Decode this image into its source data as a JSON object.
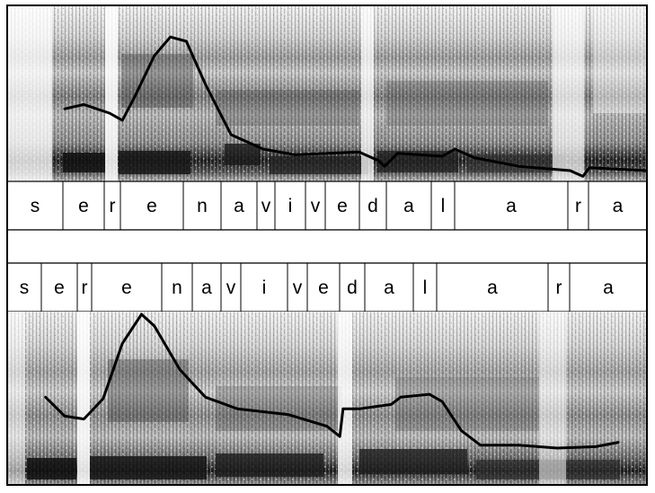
{
  "figure": {
    "top_panel": {
      "segments": [
        "s",
        "e",
        "r",
        "e",
        "n",
        "a",
        "v",
        "i",
        "v",
        "e",
        "d",
        "a",
        "l",
        "a",
        "r",
        "a"
      ],
      "pitch_points": [
        [
          0.09,
          0.52
        ],
        [
          0.12,
          0.49
        ],
        [
          0.16,
          0.55
        ],
        [
          0.18,
          0.6
        ],
        [
          0.2,
          0.43
        ],
        [
          0.23,
          0.15
        ],
        [
          0.255,
          0.02
        ],
        [
          0.28,
          0.05
        ],
        [
          0.31,
          0.35
        ],
        [
          0.35,
          0.7
        ],
        [
          0.4,
          0.8
        ],
        [
          0.45,
          0.84
        ],
        [
          0.55,
          0.82
        ],
        [
          0.58,
          0.88
        ],
        [
          0.59,
          0.92
        ],
        [
          0.61,
          0.83
        ],
        [
          0.68,
          0.85
        ],
        [
          0.7,
          0.8
        ],
        [
          0.73,
          0.86
        ],
        [
          0.8,
          0.92
        ],
        [
          0.88,
          0.95
        ],
        [
          0.9,
          0.99
        ],
        [
          0.91,
          0.93
        ],
        [
          1.0,
          0.95
        ]
      ],
      "notes": "Top spectrogram with F0 contour"
    },
    "bottom_panel": {
      "segments": [
        "s",
        "e",
        "r",
        "e",
        "n",
        "a",
        "v",
        "i",
        "v",
        "e",
        "d",
        "a",
        "l",
        "a",
        "r",
        "a"
      ],
      "pitch_points": [
        [
          0.06,
          0.57
        ],
        [
          0.09,
          0.7
        ],
        [
          0.12,
          0.72
        ],
        [
          0.15,
          0.58
        ],
        [
          0.18,
          0.2
        ],
        [
          0.21,
          0.0
        ],
        [
          0.23,
          0.08
        ],
        [
          0.27,
          0.38
        ],
        [
          0.31,
          0.57
        ],
        [
          0.36,
          0.65
        ],
        [
          0.44,
          0.69
        ],
        [
          0.5,
          0.77
        ],
        [
          0.52,
          0.84
        ],
        [
          0.525,
          0.65
        ],
        [
          0.55,
          0.65
        ],
        [
          0.6,
          0.62
        ],
        [
          0.615,
          0.57
        ],
        [
          0.66,
          0.55
        ],
        [
          0.68,
          0.6
        ],
        [
          0.71,
          0.8
        ],
        [
          0.74,
          0.9
        ],
        [
          0.8,
          0.9
        ],
        [
          0.86,
          0.92
        ],
        [
          0.92,
          0.91
        ],
        [
          0.955,
          0.88
        ]
      ]
    },
    "colors": {
      "background": "#ffffff",
      "spectrogram_light": "#f5f5f5",
      "spectrogram_dark": "#1a1a1a",
      "curve": "#000000"
    }
  }
}
